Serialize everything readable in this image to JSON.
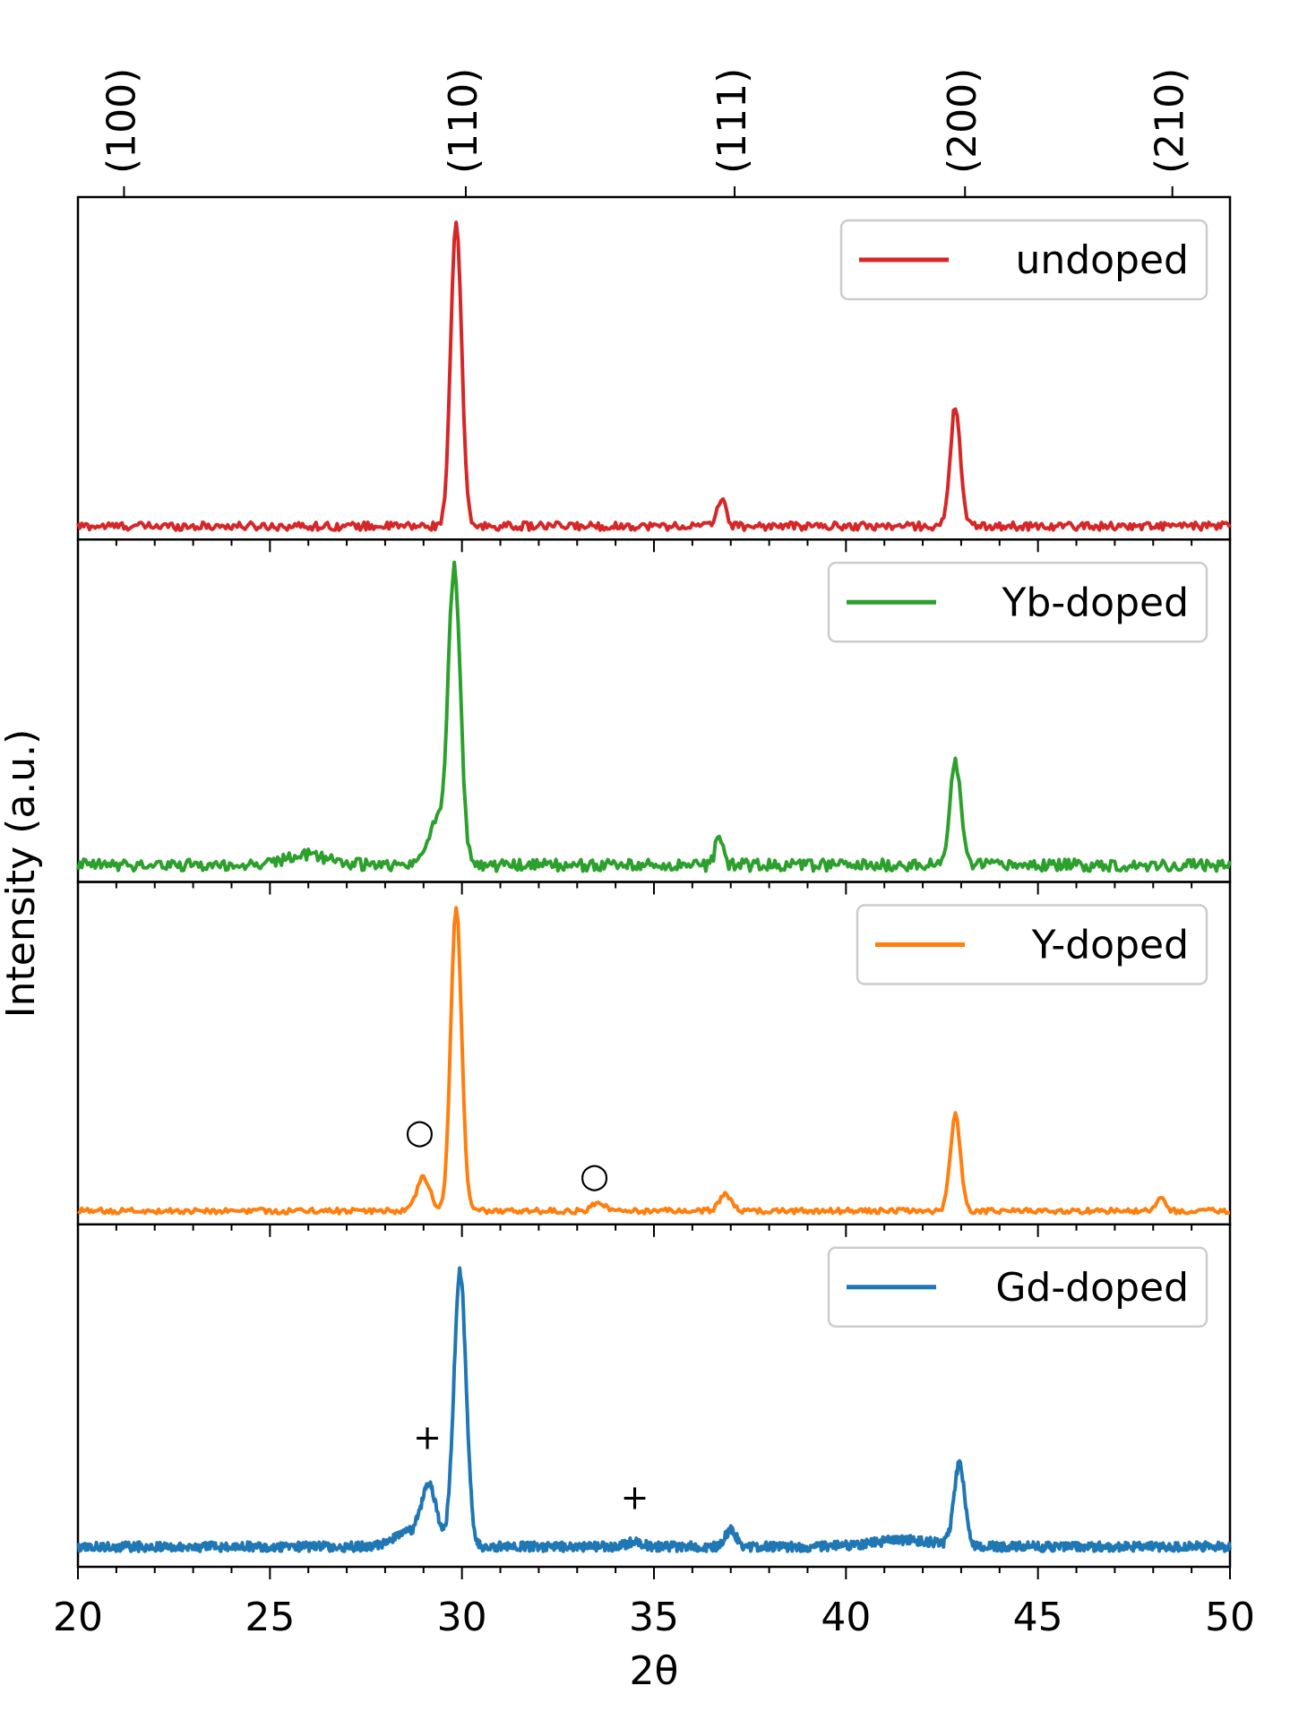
{
  "chart_data": {
    "type": "line",
    "xlabel": "2θ",
    "ylabel": "Intensity (a.u.)",
    "xlim": [
      20,
      50
    ],
    "x_ticks": [
      "20",
      "25",
      "30",
      "35",
      "40",
      "45",
      "50"
    ],
    "top_axis": {
      "ticks": [
        {
          "x": 21.2,
          "label": "(100)"
        },
        {
          "x": 30.1,
          "label": "(110)"
        },
        {
          "x": 37.1,
          "label": "(111)"
        },
        {
          "x": 43.1,
          "label": "(200)"
        },
        {
          "x": 48.5,
          "label": "(210)"
        }
      ]
    },
    "legend_position": "top-right",
    "series": [
      {
        "name": "undoped",
        "color": "#d62728",
        "baseline": 0.04,
        "noise": 0.012,
        "peaks": [
          {
            "x": 29.85,
            "height": 0.91,
            "width": 0.14
          },
          {
            "x": 36.75,
            "height": 0.08,
            "width": 0.12
          },
          {
            "x": 42.85,
            "height": 0.36,
            "width": 0.13
          }
        ],
        "annotations": []
      },
      {
        "name": "Yb-doped",
        "color": "#2ca02c",
        "baseline": 0.05,
        "noise": 0.018,
        "peaks": [
          {
            "x": 29.8,
            "height": 0.88,
            "width": 0.16
          },
          {
            "x": 29.3,
            "height": 0.12,
            "width": 0.22
          },
          {
            "x": 36.7,
            "height": 0.09,
            "width": 0.1
          },
          {
            "x": 42.85,
            "height": 0.31,
            "width": 0.14
          },
          {
            "x": 26.0,
            "height": 0.03,
            "width": 0.6
          }
        ],
        "annotations": []
      },
      {
        "name": "Y-doped",
        "color": "#ff7f0e",
        "baseline": 0.04,
        "noise": 0.008,
        "peaks": [
          {
            "x": 29.85,
            "height": 0.91,
            "width": 0.14
          },
          {
            "x": 29.0,
            "height": 0.1,
            "width": 0.17
          },
          {
            "x": 33.55,
            "height": 0.03,
            "width": 0.15
          },
          {
            "x": 36.85,
            "height": 0.05,
            "width": 0.15
          },
          {
            "x": 42.85,
            "height": 0.29,
            "width": 0.13
          },
          {
            "x": 48.2,
            "height": 0.04,
            "width": 0.1
          }
        ],
        "annotations": [
          {
            "x": 28.9,
            "y": 0.27,
            "text": "○"
          },
          {
            "x": 33.45,
            "y": 0.14,
            "text": "○"
          }
        ]
      },
      {
        "name": "Gd-doped",
        "color": "#1f77b4",
        "baseline": 0.06,
        "noise": 0.014,
        "peaks": [
          {
            "x": 29.95,
            "height": 0.82,
            "width": 0.16
          },
          {
            "x": 29.15,
            "height": 0.17,
            "width": 0.2
          },
          {
            "x": 28.6,
            "height": 0.04,
            "width": 0.4
          },
          {
            "x": 37.0,
            "height": 0.05,
            "width": 0.14
          },
          {
            "x": 42.95,
            "height": 0.24,
            "width": 0.14
          },
          {
            "x": 41.5,
            "height": 0.02,
            "width": 0.8
          },
          {
            "x": 34.5,
            "height": 0.015,
            "width": 0.2
          }
        ],
        "annotations": [
          {
            "x": 29.1,
            "y": 0.38,
            "text": "+"
          },
          {
            "x": 34.5,
            "y": 0.2,
            "text": "+"
          }
        ]
      }
    ]
  }
}
